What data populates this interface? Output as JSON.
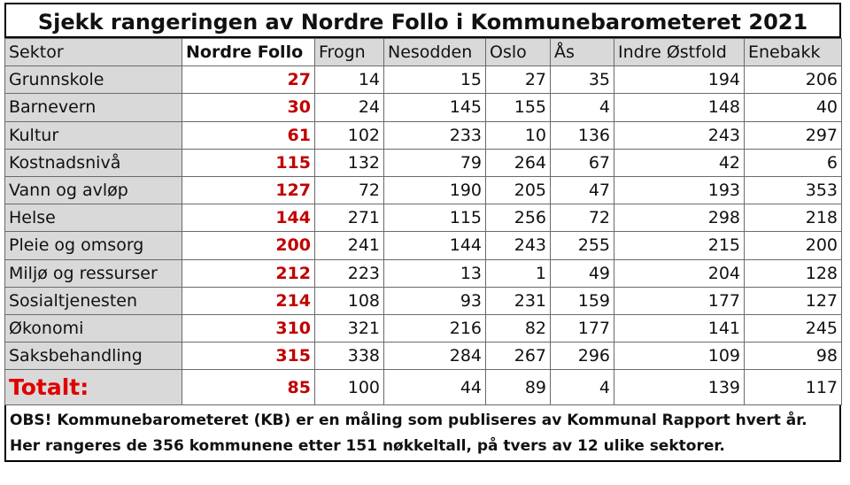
{
  "title": "Sjekk rangeringen av Nordre Follo i Kommunebarometeret 2021",
  "columns": [
    "Sektor",
    "Nordre Follo",
    "Frogn",
    "Nesodden",
    "Oslo",
    "Ås",
    "Indre Østfold",
    "Enebakk"
  ],
  "rows": [
    {
      "sector": "Grunnskole",
      "values": [
        "27",
        "14",
        "15",
        "27",
        "35",
        "194",
        "206"
      ]
    },
    {
      "sector": "Barnevern",
      "values": [
        "30",
        "24",
        "145",
        "155",
        "4",
        "148",
        "40"
      ]
    },
    {
      "sector": "Kultur",
      "values": [
        "61",
        "102",
        "233",
        "10",
        "136",
        "243",
        "297"
      ]
    },
    {
      "sector": "Kostnadsnivå",
      "values": [
        "115",
        "132",
        "79",
        "264",
        "67",
        "42",
        "6"
      ]
    },
    {
      "sector": "Vann og avløp",
      "values": [
        "127",
        "72",
        "190",
        "205",
        "47",
        "193",
        "353"
      ]
    },
    {
      "sector": "Helse",
      "values": [
        "144",
        "271",
        "115",
        "256",
        "72",
        "298",
        "218"
      ]
    },
    {
      "sector": "Pleie og omsorg",
      "values": [
        "200",
        "241",
        "144",
        "243",
        "255",
        "215",
        "200"
      ]
    },
    {
      "sector": "Miljø og ressurser",
      "values": [
        "212",
        "223",
        "13",
        "1",
        "49",
        "204",
        "128"
      ]
    },
    {
      "sector": "Sosialtjenesten",
      "values": [
        "214",
        "108",
        "93",
        "231",
        "159",
        "177",
        "127"
      ]
    },
    {
      "sector": "Økonomi",
      "values": [
        "310",
        "321",
        "216",
        "82",
        "177",
        "141",
        "245"
      ]
    },
    {
      "sector": "Saksbehandling",
      "values": [
        "315",
        "338",
        "284",
        "267",
        "296",
        "109",
        "98"
      ]
    }
  ],
  "total": {
    "sector": "Totalt:",
    "values": [
      "85",
      "100",
      "44",
      "89",
      "4",
      "139",
      "117"
    ]
  },
  "notes": [
    "OBS! Kommunebarometeret (KB) er en måling som publiseres av Kommunal Rapport hvert år.",
    "Her rangeres de 356 kommunene etter 151 nøkkeltall, på tvers av 12 ulike sektorer."
  ]
}
